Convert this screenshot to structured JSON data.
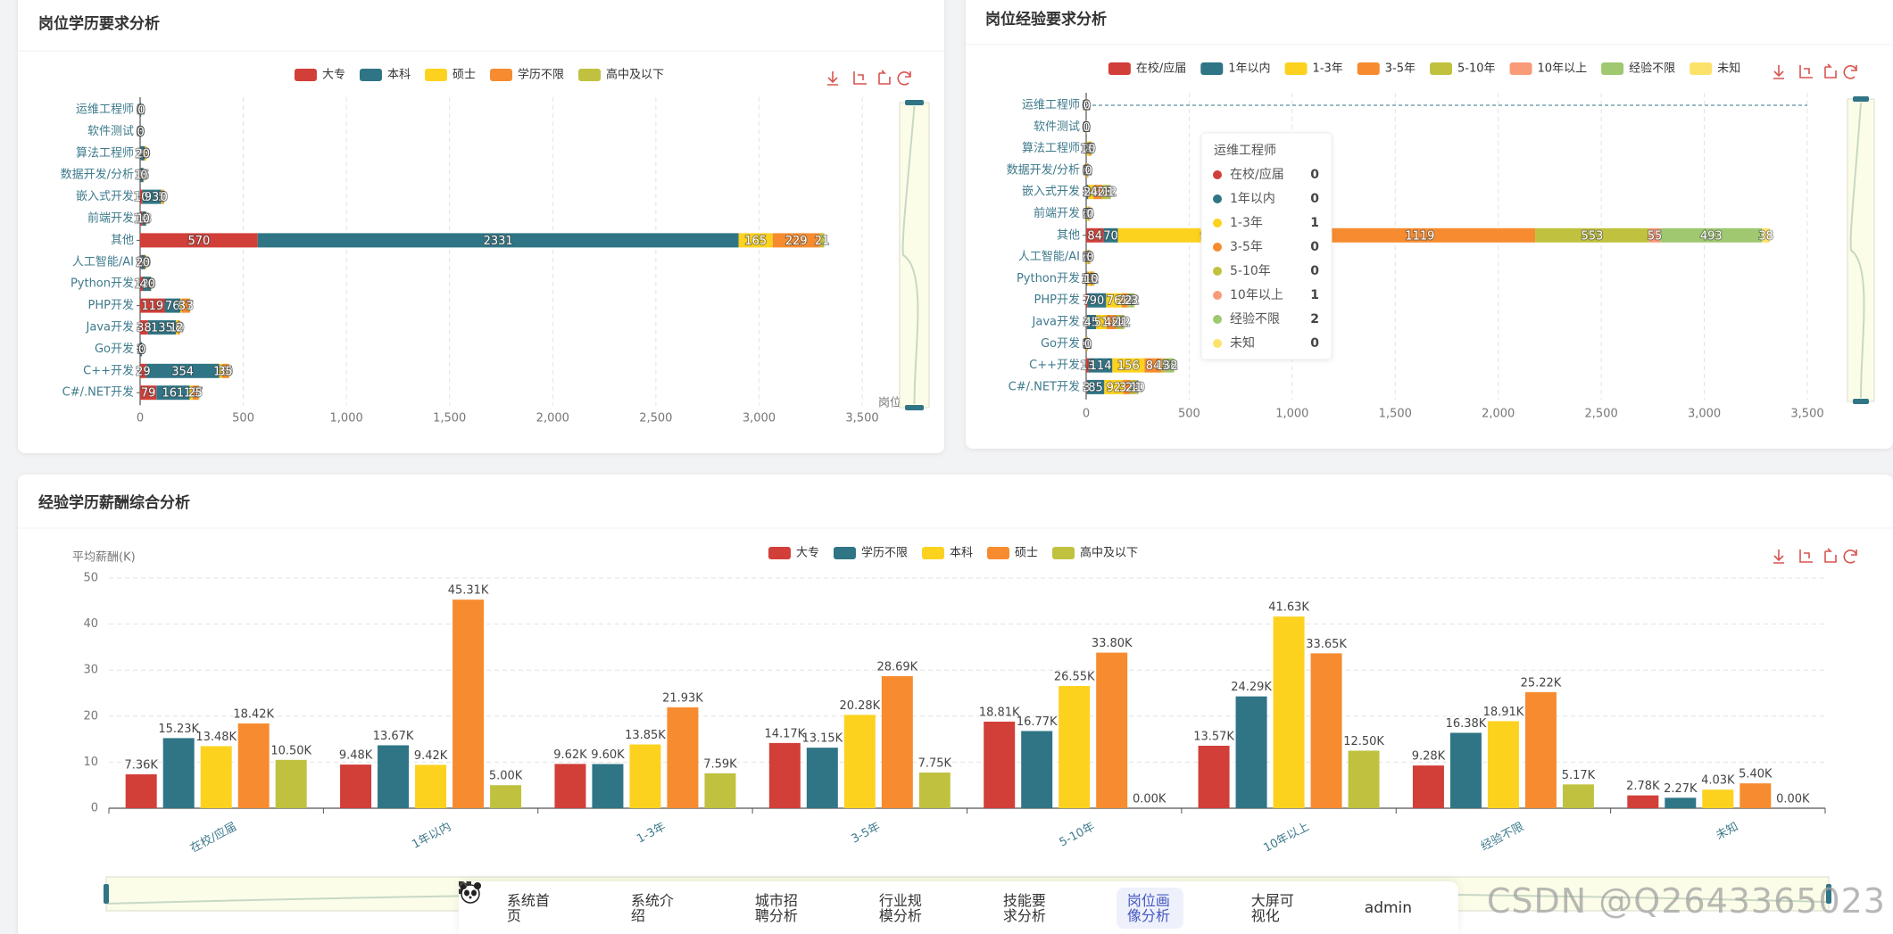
{
  "chart_data": [
    {
      "type": "bar",
      "orientation": "horizontal",
      "stacked": true,
      "title": "岗位学历要求分析",
      "xlabel": "岗位数量",
      "categories": [
        "运维工程师",
        "软件测试",
        "算法工程师",
        "数据开发/分析",
        "嵌入式开发",
        "前端开发",
        "其他",
        "人工智能/AI",
        "Python开发",
        "PHP开发",
        "Java开发",
        "Go开发",
        "C++开发",
        "C#/.NET开发"
      ],
      "series": [
        {
          "name": "大专",
          "color": "#d13f38",
          "values": [
            0,
            0,
            2,
            1,
            10,
            10,
            570,
            5,
            13,
            119,
            38,
            1,
            29,
            79
          ]
        },
        {
          "name": "本科",
          "color": "#2f7585",
          "values": [
            5,
            3,
            20,
            15,
            93,
            18,
            2331,
            20,
            40,
            76,
            135,
            8,
            354,
            161
          ]
        },
        {
          "name": "硕士",
          "color": "#fcd21f",
          "values": [
            1,
            0,
            8,
            3,
            5,
            0,
            165,
            5,
            3,
            8,
            10,
            0,
            15,
            15
          ]
        },
        {
          "name": "学历不限",
          "color": "#f68c2f",
          "values": [
            0,
            0,
            0,
            0,
            8,
            2,
            229,
            0,
            0,
            37,
            8,
            0,
            30,
            27
          ]
        },
        {
          "name": "高中及以下",
          "color": "#c0c23f",
          "values": [
            0,
            0,
            0,
            0,
            0,
            0,
            21,
            0,
            0,
            3,
            2,
            0,
            5,
            5
          ]
        }
      ],
      "xlim": [
        0,
        3500
      ],
      "xticks": [
        0,
        500,
        {
          "value": 1000,
          "label": "1,000"
        },
        {
          "value": 1500,
          "label": "1,500"
        },
        {
          "value": 2000,
          "label": "2,000"
        },
        {
          "value": 2500,
          "label": "2,500"
        },
        {
          "value": 3000,
          "label": "3,000"
        },
        {
          "value": 3500,
          "label": "3,500"
        }
      ],
      "grid": true
    },
    {
      "type": "bar",
      "orientation": "horizontal",
      "stacked": true,
      "title": "岗位经验要求分析",
      "categories": [
        "运维工程师",
        "软件测试",
        "算法工程师",
        "数据开发/分析",
        "嵌入式开发",
        "前端开发",
        "其他",
        "人工智能/AI",
        "Python开发",
        "PHP开发",
        "Java开发",
        "Go开发",
        "C++开发",
        "C#/.NET开发"
      ],
      "series": [
        {
          "name": "在校/应届",
          "color": "#d13f38",
          "values": [
            0,
            0,
            0,
            0,
            2,
            0,
            84,
            0,
            2,
            7,
            3,
            0,
            13,
            3
          ]
        },
        {
          "name": "1年以内",
          "color": "#2f7585",
          "values": [
            0,
            0,
            2,
            1,
            8,
            2,
            70,
            2,
            4,
            90,
            45,
            1,
            114,
            85
          ]
        },
        {
          "name": "1-3年",
          "color": "#fcd21f",
          "values": [
            1,
            1,
            10,
            5,
            26,
            7,
            906,
            7,
            13,
            76,
            51,
            3,
            156,
            92
          ]
        },
        {
          "name": "3-5年",
          "color": "#f68c2f",
          "values": [
            0,
            0,
            8,
            3,
            40,
            5,
            1119,
            5,
            12,
            24,
            48,
            3,
            84,
            32
          ]
        },
        {
          "name": "5-10年",
          "color": "#c0c23f",
          "values": [
            0,
            0,
            3,
            1,
            28,
            2,
            553,
            3,
            5,
            12,
            22,
            1,
            16,
            28
          ]
        },
        {
          "name": "10年以上",
          "color": "#f99a79",
          "values": [
            1,
            0,
            0,
            0,
            3,
            0,
            55,
            0,
            0,
            2,
            4,
            0,
            5,
            4
          ]
        },
        {
          "name": "经验不限",
          "color": "#9fc870",
          "values": [
            2,
            1,
            5,
            2,
            12,
            4,
            493,
            3,
            5,
            22,
            12,
            1,
            38,
            10
          ]
        },
        {
          "name": "未知",
          "color": "#fde26a",
          "values": [
            0,
            0,
            0,
            0,
            1,
            0,
            38,
            0,
            0,
            3,
            1,
            0,
            2,
            1
          ]
        }
      ],
      "xlim": [
        0,
        3500
      ],
      "xticks": [
        0,
        500,
        {
          "value": 1000,
          "label": "1,000"
        },
        {
          "value": 1500,
          "label": "1,500"
        },
        {
          "value": 2000,
          "label": "2,000"
        },
        {
          "value": 2500,
          "label": "2,500"
        },
        {
          "value": 3000,
          "label": "3,000"
        },
        {
          "value": 3500,
          "label": "3,500"
        }
      ],
      "grid": true
    },
    {
      "type": "bar",
      "orientation": "vertical",
      "stacked": false,
      "title": "经验学历薪酬综合分析",
      "ylabel": "平均薪酬(K)",
      "categories": [
        "在校/应届",
        "1年以内",
        "1-3年",
        "3-5年",
        "5-10年",
        "10年以上",
        "经验不限",
        "未知"
      ],
      "series": [
        {
          "name": "大专",
          "color": "#d13f38",
          "values": [
            7.36,
            9.48,
            9.62,
            14.17,
            18.81,
            13.57,
            9.28,
            2.78
          ],
          "value_labels": [
            "7.36K",
            "9.48K",
            "9.62K",
            "14.17K",
            "18.81K",
            "13.57K",
            "9.28K",
            "2.78K"
          ]
        },
        {
          "name": "学历不限",
          "color": "#2f7585",
          "values": [
            15.23,
            13.67,
            9.6,
            13.15,
            16.77,
            24.29,
            16.38,
            2.27
          ],
          "value_labels": [
            "15.23K",
            "13.67K",
            "9.60K",
            "13.15K",
            "16.77K",
            "24.29K",
            "16.38K",
            "2.27K"
          ]
        },
        {
          "name": "本科",
          "color": "#fcd21f",
          "values": [
            13.48,
            9.42,
            13.85,
            20.28,
            26.55,
            41.63,
            18.91,
            4.03
          ],
          "value_labels": [
            "13.48K",
            "9.42K",
            "13.85K",
            "20.28K",
            "26.55K",
            "41.63K",
            "18.91K",
            "4.03K"
          ]
        },
        {
          "name": "硕士",
          "color": "#f68c2f",
          "values": [
            18.42,
            45.31,
            21.93,
            28.69,
            33.8,
            33.65,
            25.22,
            5.4
          ],
          "value_labels": [
            "18.42K",
            "45.31K",
            "21.93K",
            "28.69K",
            "33.80K",
            "33.65K",
            "25.22K",
            "5.40K"
          ]
        },
        {
          "name": "高中及以下",
          "color": "#c0c23f",
          "values": [
            10.5,
            5,
            7.59,
            7.75,
            0,
            12.5,
            5.17,
            0
          ],
          "value_labels": [
            "10.50K",
            "5.00K",
            "7.59K",
            "7.75K",
            "0.00K",
            "12.50K",
            "5.17K",
            "0.00K"
          ]
        }
      ],
      "ylim": [
        0,
        50
      ],
      "yticks": [
        0,
        10,
        20,
        30,
        40,
        50
      ],
      "grid": true
    }
  ],
  "nav": {
    "items": [
      "系统首页",
      "系统介绍",
      "城市招聘分析",
      "行业规模分析",
      "技能要求分析",
      "岗位画像分析",
      "大屏可视化"
    ],
    "active": 5,
    "user": "admin"
  },
  "watermark": "CSDN @Q2643365023"
}
